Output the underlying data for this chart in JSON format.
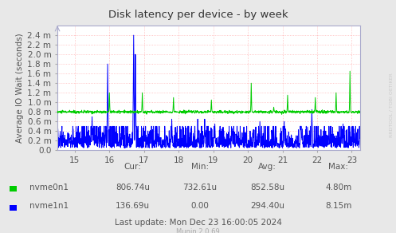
{
  "title": "Disk latency per device - by week",
  "ylabel": "Average IO Wait (seconds)",
  "bg_color": "#e8e8e8",
  "plot_bg_color": "#ffffff",
  "x_ticks": [
    15,
    16,
    17,
    18,
    19,
    20,
    21,
    22,
    23
  ],
  "x_min": 14.5,
  "x_max": 23.25,
  "y_min": 0.0,
  "y_max": 0.0026,
  "y_ticks_vals": [
    0.0,
    0.0002,
    0.0004,
    0.0006,
    0.0008,
    0.001,
    0.0012,
    0.0014,
    0.0016,
    0.0018,
    0.002,
    0.0022,
    0.0024
  ],
  "y_tick_labels": [
    "0.0",
    "0.2 m",
    "0.4 m",
    "0.6 m",
    "0.8 m",
    "1.0 m",
    "1.2 m",
    "1.4 m",
    "1.6 m",
    "1.8 m",
    "2.0 m",
    "2.2 m",
    "2.4 m"
  ],
  "nvme0n1_color": "#00cc00",
  "nvme1n1_color": "#0000ff",
  "legend_stats": {
    "nvme0n1": {
      "cur": "806.74u",
      "min": "732.61u",
      "avg": "852.58u",
      "max": "4.80m"
    },
    "nvme1n1": {
      "cur": "136.69u",
      "min": "0.00",
      "avg": "294.40u",
      "max": "8.15m"
    }
  },
  "footer": "Last update: Mon Dec 23 16:00:05 2024",
  "munin_version": "Munin 2.0.69",
  "rrdtool_watermark": "RRDTOOL / TOBI OETIKER",
  "tick_color": "#aaaaaa",
  "text_color": "#555555",
  "grid_h_color": "#ff8080",
  "grid_v_color": "#ff8080",
  "spine_color": "#aaaacc"
}
